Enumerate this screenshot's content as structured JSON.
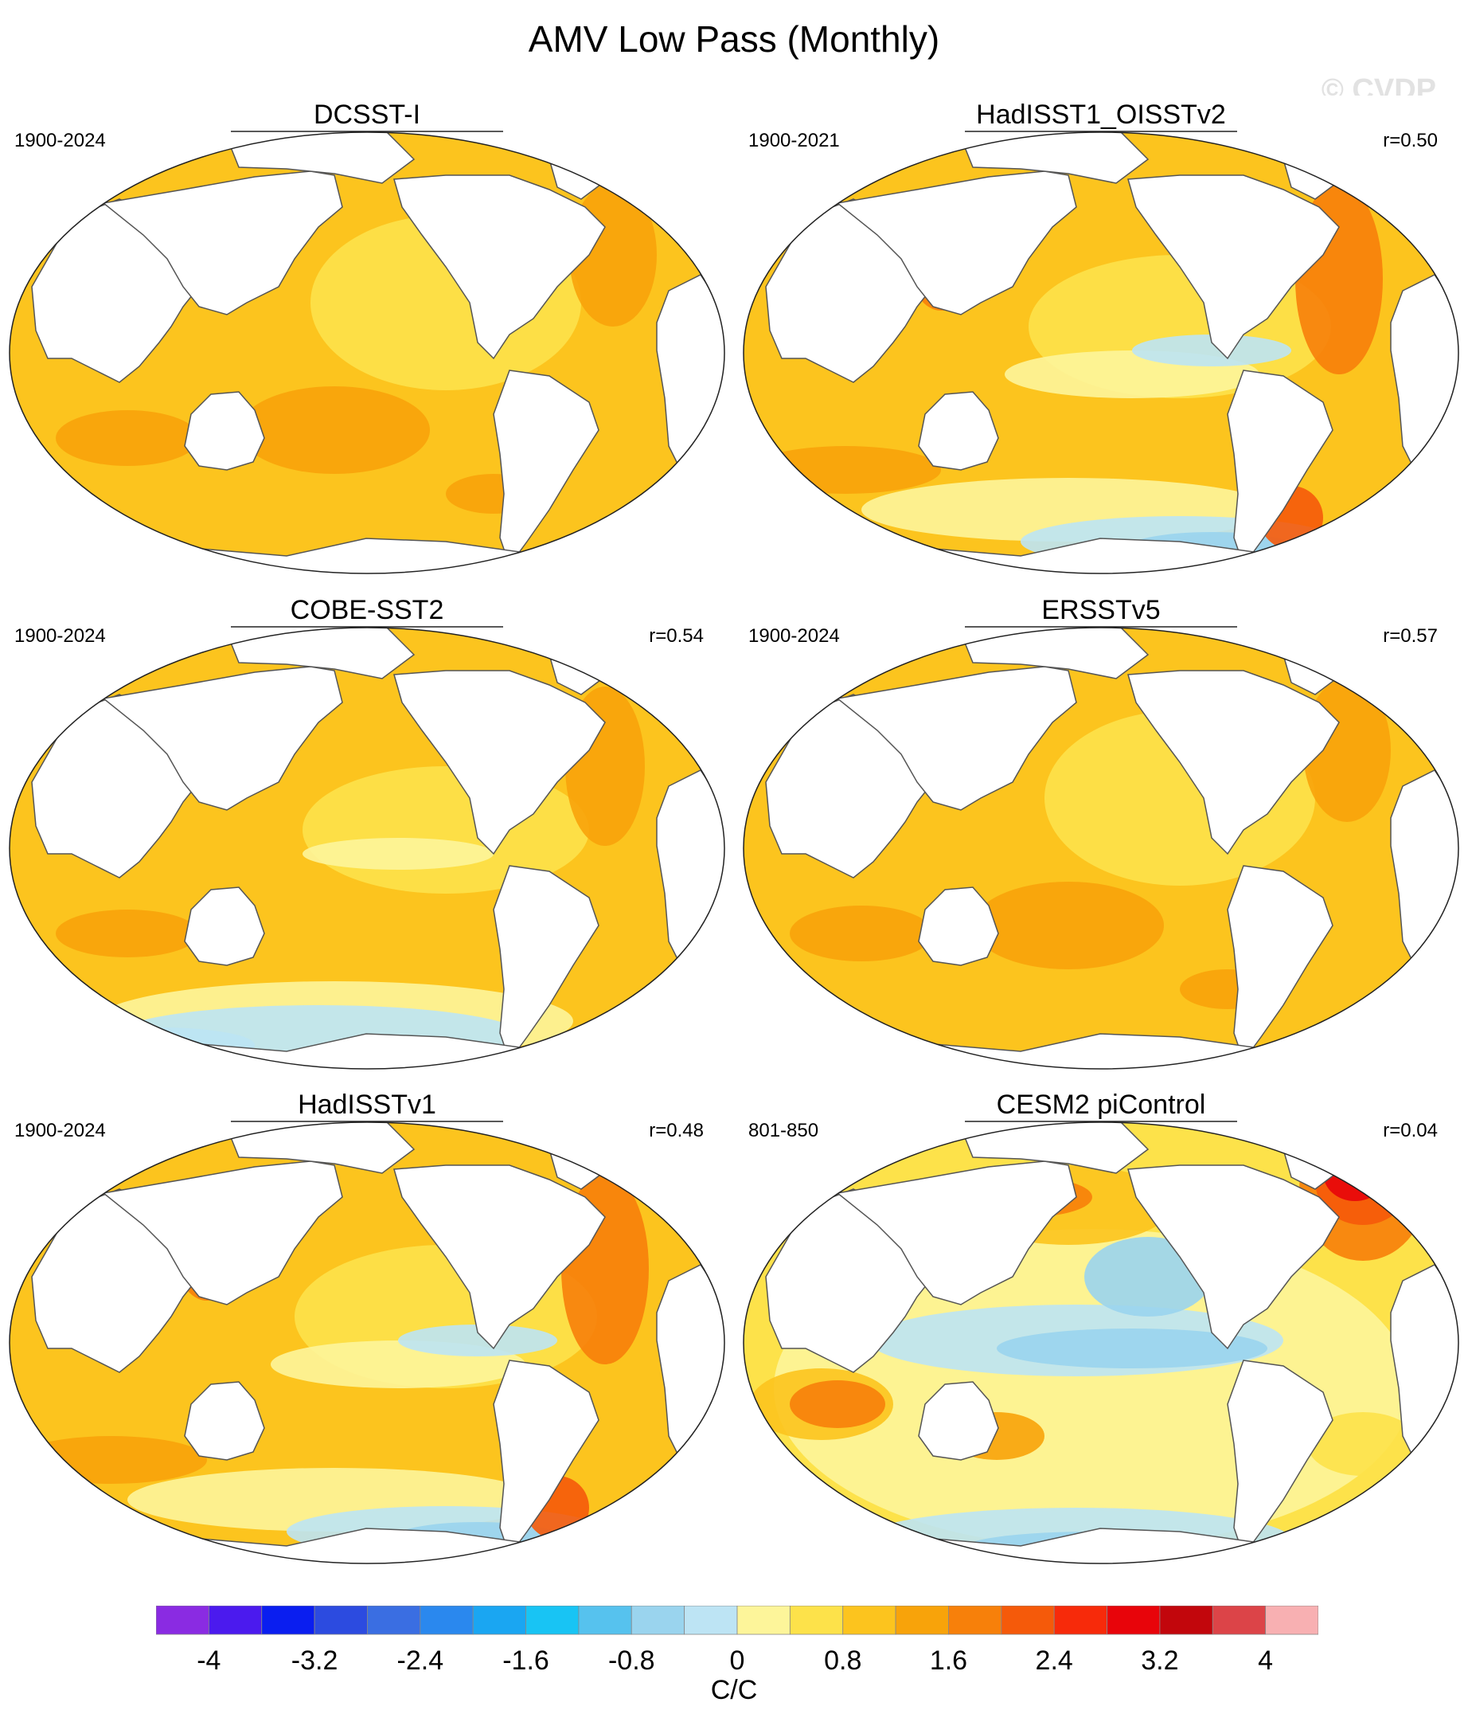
{
  "figure": {
    "title": "AMV Low Pass (Monthly)",
    "watermark": "© CVDP"
  },
  "panels": [
    {
      "title": "DCSST-I",
      "period": "1900-2024",
      "correlation": "",
      "pattern": "uniform-warm"
    },
    {
      "title": "HadISST1_OISSTv2",
      "period": "1900-2021",
      "correlation": "r=0.50",
      "pattern": "warm-southern-cool-patches"
    },
    {
      "title": "COBE-SST2",
      "period": "1900-2024",
      "correlation": "r=0.54",
      "pattern": "warm-southern-cool-band"
    },
    {
      "title": "ERSSTv5",
      "period": "1900-2024",
      "correlation": "r=0.57",
      "pattern": "uniform-warm"
    },
    {
      "title": "HadISSTv1",
      "period": "1900-2024",
      "correlation": "r=0.48",
      "pattern": "warm-southern-cool-patches"
    },
    {
      "title": "CESM2 piControl",
      "period": "801-850",
      "correlation": "r=0.04",
      "pattern": "north-atlantic-dipole"
    }
  ],
  "colorbar": {
    "units": "C/C",
    "tick_labels": [
      "-4",
      "-3.2",
      "-2.4",
      "-1.6",
      "-0.8",
      "0",
      "0.8",
      "1.6",
      "2.4",
      "3.2",
      "4"
    ],
    "colors": [
      "#8a2be2",
      "#4b1aee",
      "#0a1ef0",
      "#2c4be0",
      "#3a6ee2",
      "#2a88ee",
      "#1aa6f2",
      "#18c4f4",
      "#56c2ee",
      "#9ad4ee",
      "#bde4f4",
      "#fdf59a",
      "#fde24a",
      "#fcc41e",
      "#f8a30a",
      "#f7800a",
      "#f55a0a",
      "#f72a0a",
      "#e8040a",
      "#c2060c",
      "#dc4448",
      "#f8b0b2"
    ]
  }
}
